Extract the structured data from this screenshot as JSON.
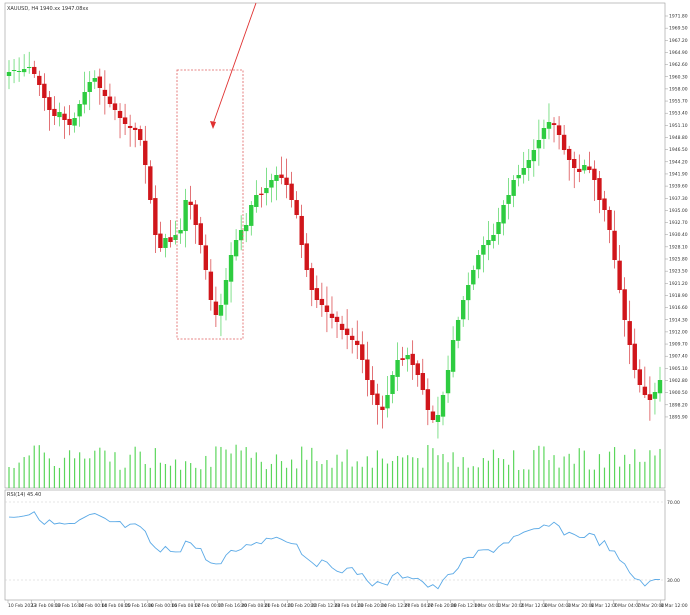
{
  "main_chart": {
    "title": "XAUUSD, H4  1940.xx  1947.08xx",
    "price_ticks": [
      "1971.80",
      "1969.50",
      "1967.20",
      "1964.90",
      "1962.60",
      "1960.30",
      "1958.00",
      "1955.70",
      "1953.40",
      "1951.10",
      "1948.80",
      "1946.50",
      "1944.20",
      "1941.90",
      "1939.60",
      "1937.30",
      "1935.00",
      "1932.70",
      "1930.40",
      "1928.10",
      "1925.80",
      "1923.50",
      "1921.20",
      "1918.90",
      "1916.60",
      "1914.30",
      "1912.00",
      "1909.70",
      "1907.40",
      "1905.10",
      "1902.80",
      "1900.50",
      "1898.20",
      "1895.90"
    ],
    "colors": {
      "bull": "#2ecc40",
      "bear": "#d0161b",
      "volume": "#5bd65b",
      "rsi": "#5aa9e6",
      "arrow": "#e03030",
      "box": "#e06060"
    }
  },
  "rsi_panel": {
    "title": "RSI(14) 45.40",
    "levels": [
      "70.00",
      "30.00"
    ]
  },
  "time_axis": {
    "labels": [
      "10 Feb 2023",
      "13 Feb 08:00",
      "13 Feb 16:00",
      "14 Feb 00:00",
      "14 Feb 08:00",
      "15 Feb 16:00",
      "16 Feb 00:00",
      "16 Feb 08:00",
      "17 Feb 00:00",
      "17 Feb 16:00",
      "20 Feb 08:00",
      "21 Feb 04:00",
      "21 Feb 20:00",
      "22 Feb 12:00",
      "23 Feb 04:00",
      "23 Feb 20:00",
      "24 Feb 12:00",
      "27 Feb 04:00",
      "27 Feb 20:00",
      "28 Feb 12:00",
      "1 Mar 04:00",
      "1 Mar 20:00",
      "2 Mar 12:00",
      "3 Mar 04:00",
      "3 Mar 20:00",
      "6 Mar 12:00",
      "7 Mar 04:00",
      "7 Mar 20:00",
      "8 Mar 12:00"
    ]
  }
}
